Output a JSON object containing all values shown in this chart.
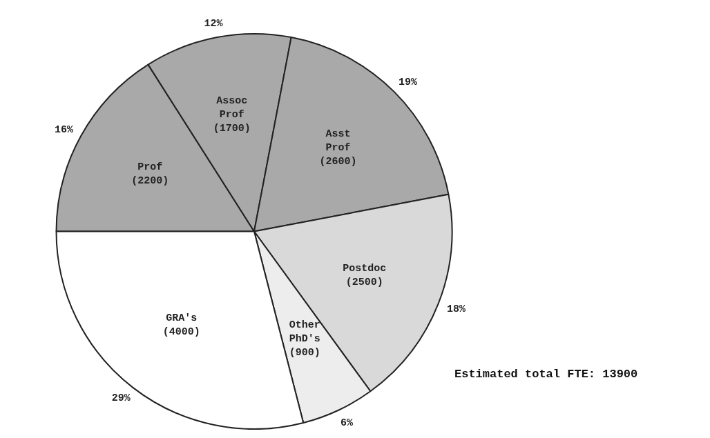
{
  "chart_data": {
    "type": "pie",
    "categories": [
      "Prof (2200)",
      "Assoc Prof (1700)",
      "Asst Prof (2600)",
      "Postdoc (2500)",
      "Other PhD's (900)",
      "GRA's (4000)"
    ],
    "values": [
      16,
      12,
      19,
      18,
      6,
      29
    ],
    "colors": [
      "#a9a9a9",
      "#a9a9a9",
      "#a9a9a9",
      "#d9d9d9",
      "#ededed",
      "#ffffff"
    ],
    "value_labels": [
      "16%",
      "12%",
      "19%",
      "18%",
      "6%",
      "29%"
    ],
    "legend": false,
    "annotations": [
      "Estimated total FTE: 13900"
    ]
  }
}
